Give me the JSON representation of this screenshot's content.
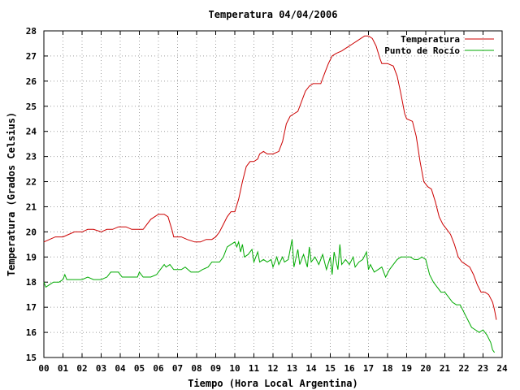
{
  "chart_data": {
    "type": "line",
    "title": "Temperatura 04/04/2006",
    "xlabel": "Tiempo (Hora Local Argentina)",
    "ylabel": "Temperatura (Grados Celsius)",
    "xlim": [
      0,
      24
    ],
    "ylim": [
      15,
      28
    ],
    "grid": true,
    "legend_position": "top-right",
    "x_ticks": [
      {
        "value": 0,
        "label": "00"
      },
      {
        "value": 1,
        "label": "01"
      },
      {
        "value": 2,
        "label": "02"
      },
      {
        "value": 3,
        "label": "03"
      },
      {
        "value": 4,
        "label": "04"
      },
      {
        "value": 5,
        "label": "05"
      },
      {
        "value": 6,
        "label": "06"
      },
      {
        "value": 7,
        "label": "07"
      },
      {
        "value": 8,
        "label": "08"
      },
      {
        "value": 9,
        "label": "09"
      },
      {
        "value": 10,
        "label": "10"
      },
      {
        "value": 11,
        "label": "11"
      },
      {
        "value": 12,
        "label": "12"
      },
      {
        "value": 13,
        "label": "13"
      },
      {
        "value": 14,
        "label": "14"
      },
      {
        "value": 15,
        "label": "15"
      },
      {
        "value": 16,
        "label": "16"
      },
      {
        "value": 17,
        "label": "17"
      },
      {
        "value": 18,
        "label": "18"
      },
      {
        "value": 19,
        "label": "19"
      },
      {
        "value": 20,
        "label": "20"
      },
      {
        "value": 21,
        "label": "21"
      },
      {
        "value": 22,
        "label": "22"
      },
      {
        "value": 23,
        "label": "23"
      },
      {
        "value": 24,
        "label": "24"
      }
    ],
    "y_ticks": [
      {
        "value": 15,
        "label": "15"
      },
      {
        "value": 16,
        "label": "16"
      },
      {
        "value": 17,
        "label": "17"
      },
      {
        "value": 18,
        "label": "18"
      },
      {
        "value": 19,
        "label": "19"
      },
      {
        "value": 20,
        "label": "20"
      },
      {
        "value": 21,
        "label": "21"
      },
      {
        "value": 22,
        "label": "22"
      },
      {
        "value": 23,
        "label": "23"
      },
      {
        "value": 24,
        "label": "24"
      },
      {
        "value": 25,
        "label": "25"
      },
      {
        "value": 26,
        "label": "26"
      },
      {
        "value": 27,
        "label": "27"
      },
      {
        "value": 28,
        "label": "28"
      }
    ],
    "series": [
      {
        "name": "Temperatura",
        "color": "#cc0000",
        "points": [
          [
            0.0,
            19.6
          ],
          [
            0.3,
            19.7
          ],
          [
            0.6,
            19.8
          ],
          [
            1.0,
            19.8
          ],
          [
            1.3,
            19.9
          ],
          [
            1.6,
            20.0
          ],
          [
            2.0,
            20.0
          ],
          [
            2.3,
            20.1
          ],
          [
            2.6,
            20.1
          ],
          [
            3.0,
            20.0
          ],
          [
            3.3,
            20.1
          ],
          [
            3.6,
            20.1
          ],
          [
            3.9,
            20.2
          ],
          [
            4.3,
            20.2
          ],
          [
            4.6,
            20.1
          ],
          [
            4.9,
            20.1
          ],
          [
            5.2,
            20.1
          ],
          [
            5.4,
            20.3
          ],
          [
            5.6,
            20.5
          ],
          [
            5.8,
            20.6
          ],
          [
            6.0,
            20.7
          ],
          [
            6.3,
            20.7
          ],
          [
            6.5,
            20.6
          ],
          [
            6.7,
            20.1
          ],
          [
            6.8,
            19.8
          ],
          [
            7.2,
            19.8
          ],
          [
            7.5,
            19.7
          ],
          [
            7.9,
            19.6
          ],
          [
            8.2,
            19.6
          ],
          [
            8.5,
            19.7
          ],
          [
            8.8,
            19.7
          ],
          [
            9.0,
            19.8
          ],
          [
            9.2,
            20.0
          ],
          [
            9.4,
            20.3
          ],
          [
            9.6,
            20.6
          ],
          [
            9.8,
            20.8
          ],
          [
            10.0,
            20.8
          ],
          [
            10.2,
            21.3
          ],
          [
            10.4,
            22.0
          ],
          [
            10.6,
            22.6
          ],
          [
            10.8,
            22.8
          ],
          [
            11.0,
            22.8
          ],
          [
            11.2,
            22.9
          ],
          [
            11.3,
            23.1
          ],
          [
            11.5,
            23.2
          ],
          [
            11.7,
            23.1
          ],
          [
            12.0,
            23.1
          ],
          [
            12.3,
            23.2
          ],
          [
            12.5,
            23.6
          ],
          [
            12.7,
            24.3
          ],
          [
            12.9,
            24.6
          ],
          [
            13.1,
            24.7
          ],
          [
            13.3,
            24.8
          ],
          [
            13.5,
            25.2
          ],
          [
            13.7,
            25.6
          ],
          [
            13.9,
            25.8
          ],
          [
            14.1,
            25.9
          ],
          [
            14.5,
            25.9
          ],
          [
            14.7,
            26.3
          ],
          [
            14.9,
            26.7
          ],
          [
            15.1,
            27.0
          ],
          [
            15.3,
            27.1
          ],
          [
            15.6,
            27.2
          ],
          [
            15.8,
            27.3
          ],
          [
            16.0,
            27.4
          ],
          [
            16.2,
            27.5
          ],
          [
            16.4,
            27.6
          ],
          [
            16.6,
            27.7
          ],
          [
            16.8,
            27.8
          ],
          [
            17.0,
            27.8
          ],
          [
            17.2,
            27.7
          ],
          [
            17.4,
            27.4
          ],
          [
            17.6,
            26.9
          ],
          [
            17.7,
            26.7
          ],
          [
            18.0,
            26.7
          ],
          [
            18.3,
            26.6
          ],
          [
            18.5,
            26.2
          ],
          [
            18.7,
            25.5
          ],
          [
            18.9,
            24.7
          ],
          [
            19.0,
            24.5
          ],
          [
            19.3,
            24.4
          ],
          [
            19.5,
            23.8
          ],
          [
            19.7,
            22.8
          ],
          [
            19.9,
            22.0
          ],
          [
            20.1,
            21.8
          ],
          [
            20.3,
            21.7
          ],
          [
            20.5,
            21.2
          ],
          [
            20.7,
            20.6
          ],
          [
            20.9,
            20.3
          ],
          [
            21.1,
            20.1
          ],
          [
            21.3,
            19.9
          ],
          [
            21.5,
            19.5
          ],
          [
            21.7,
            19.0
          ],
          [
            21.9,
            18.8
          ],
          [
            22.1,
            18.7
          ],
          [
            22.3,
            18.6
          ],
          [
            22.5,
            18.3
          ],
          [
            22.7,
            17.9
          ],
          [
            22.9,
            17.6
          ],
          [
            23.1,
            17.6
          ],
          [
            23.3,
            17.5
          ],
          [
            23.5,
            17.2
          ],
          [
            23.6,
            16.9
          ],
          [
            23.7,
            16.5
          ]
        ]
      },
      {
        "name": "Punto de Rocío",
        "color": "#00aa00",
        "points": [
          [
            0.0,
            18.0
          ],
          [
            0.1,
            17.8
          ],
          [
            0.3,
            17.9
          ],
          [
            0.5,
            18.0
          ],
          [
            0.8,
            18.0
          ],
          [
            1.0,
            18.1
          ],
          [
            1.1,
            18.3
          ],
          [
            1.2,
            18.1
          ],
          [
            1.5,
            18.1
          ],
          [
            2.0,
            18.1
          ],
          [
            2.3,
            18.2
          ],
          [
            2.6,
            18.1
          ],
          [
            3.0,
            18.1
          ],
          [
            3.3,
            18.2
          ],
          [
            3.5,
            18.4
          ],
          [
            3.9,
            18.4
          ],
          [
            4.1,
            18.2
          ],
          [
            4.5,
            18.2
          ],
          [
            4.9,
            18.2
          ],
          [
            5.0,
            18.4
          ],
          [
            5.2,
            18.2
          ],
          [
            5.6,
            18.2
          ],
          [
            5.9,
            18.3
          ],
          [
            6.1,
            18.5
          ],
          [
            6.3,
            18.7
          ],
          [
            6.4,
            18.6
          ],
          [
            6.6,
            18.7
          ],
          [
            6.8,
            18.5
          ],
          [
            7.2,
            18.5
          ],
          [
            7.4,
            18.6
          ],
          [
            7.7,
            18.4
          ],
          [
            8.1,
            18.4
          ],
          [
            8.3,
            18.5
          ],
          [
            8.6,
            18.6
          ],
          [
            8.8,
            18.8
          ],
          [
            9.2,
            18.8
          ],
          [
            9.4,
            19.0
          ],
          [
            9.6,
            19.4
          ],
          [
            9.8,
            19.5
          ],
          [
            10.0,
            19.6
          ],
          [
            10.1,
            19.4
          ],
          [
            10.2,
            19.6
          ],
          [
            10.3,
            19.2
          ],
          [
            10.4,
            19.5
          ],
          [
            10.5,
            19.0
          ],
          [
            10.7,
            19.1
          ],
          [
            10.9,
            19.3
          ],
          [
            11.0,
            18.8
          ],
          [
            11.2,
            19.2
          ],
          [
            11.3,
            18.8
          ],
          [
            11.5,
            18.9
          ],
          [
            11.7,
            18.8
          ],
          [
            11.9,
            18.9
          ],
          [
            12.0,
            18.6
          ],
          [
            12.2,
            19.0
          ],
          [
            12.3,
            18.7
          ],
          [
            12.5,
            19.0
          ],
          [
            12.6,
            18.8
          ],
          [
            12.8,
            18.9
          ],
          [
            13.0,
            19.7
          ],
          [
            13.1,
            18.6
          ],
          [
            13.3,
            19.3
          ],
          [
            13.4,
            18.7
          ],
          [
            13.6,
            19.1
          ],
          [
            13.8,
            18.6
          ],
          [
            13.9,
            19.4
          ],
          [
            14.0,
            18.8
          ],
          [
            14.2,
            19.0
          ],
          [
            14.4,
            18.7
          ],
          [
            14.6,
            19.1
          ],
          [
            14.8,
            18.5
          ],
          [
            15.0,
            19.0
          ],
          [
            15.1,
            18.3
          ],
          [
            15.2,
            19.2
          ],
          [
            15.4,
            18.5
          ],
          [
            15.5,
            19.5
          ],
          [
            15.6,
            18.7
          ],
          [
            15.8,
            18.9
          ],
          [
            16.0,
            18.7
          ],
          [
            16.2,
            19.0
          ],
          [
            16.3,
            18.6
          ],
          [
            16.5,
            18.8
          ],
          [
            16.7,
            18.9
          ],
          [
            16.9,
            19.2
          ],
          [
            17.0,
            18.5
          ],
          [
            17.1,
            18.7
          ],
          [
            17.3,
            18.4
          ],
          [
            17.5,
            18.5
          ],
          [
            17.7,
            18.6
          ],
          [
            17.9,
            18.2
          ],
          [
            18.1,
            18.5
          ],
          [
            18.3,
            18.7
          ],
          [
            18.5,
            18.9
          ],
          [
            18.7,
            19.0
          ],
          [
            19.0,
            19.0
          ],
          [
            19.2,
            19.0
          ],
          [
            19.4,
            18.9
          ],
          [
            19.6,
            18.9
          ],
          [
            19.8,
            19.0
          ],
          [
            20.0,
            18.9
          ],
          [
            20.2,
            18.3
          ],
          [
            20.4,
            18.0
          ],
          [
            20.6,
            17.8
          ],
          [
            20.8,
            17.6
          ],
          [
            21.0,
            17.6
          ],
          [
            21.2,
            17.4
          ],
          [
            21.4,
            17.2
          ],
          [
            21.6,
            17.1
          ],
          [
            21.8,
            17.1
          ],
          [
            22.0,
            16.8
          ],
          [
            22.2,
            16.5
          ],
          [
            22.4,
            16.2
          ],
          [
            22.6,
            16.1
          ],
          [
            22.8,
            16.0
          ],
          [
            23.0,
            16.1
          ],
          [
            23.2,
            15.9
          ],
          [
            23.4,
            15.6
          ],
          [
            23.5,
            15.3
          ],
          [
            23.6,
            15.2
          ]
        ]
      }
    ]
  }
}
